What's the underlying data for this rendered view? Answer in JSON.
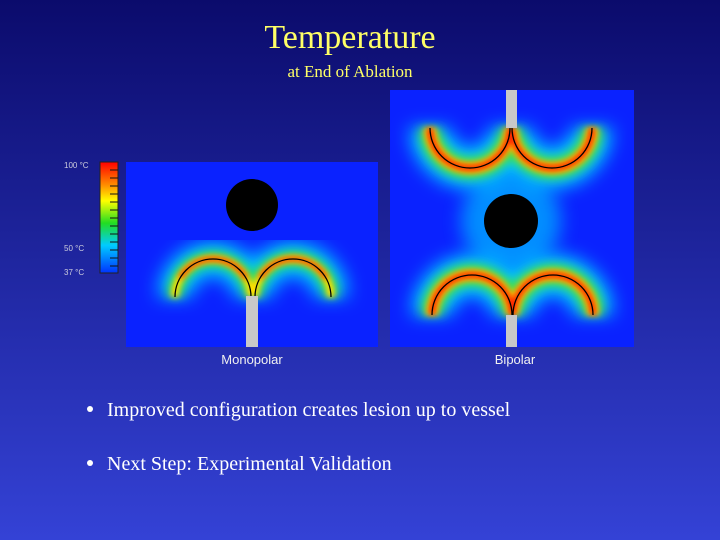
{
  "header": {
    "title": "Temperature",
    "subtitle": "at End of Ablation"
  },
  "scale": {
    "labels": [
      "100 °C",
      "50 °C",
      "37 °C"
    ]
  },
  "panels": [
    {
      "caption": "Monopolar"
    },
    {
      "caption": "Bipolar"
    }
  ],
  "bullets": [
    "Improved configuration creates lesion up to vessel",
    "Next Step: Experimental Validation"
  ]
}
